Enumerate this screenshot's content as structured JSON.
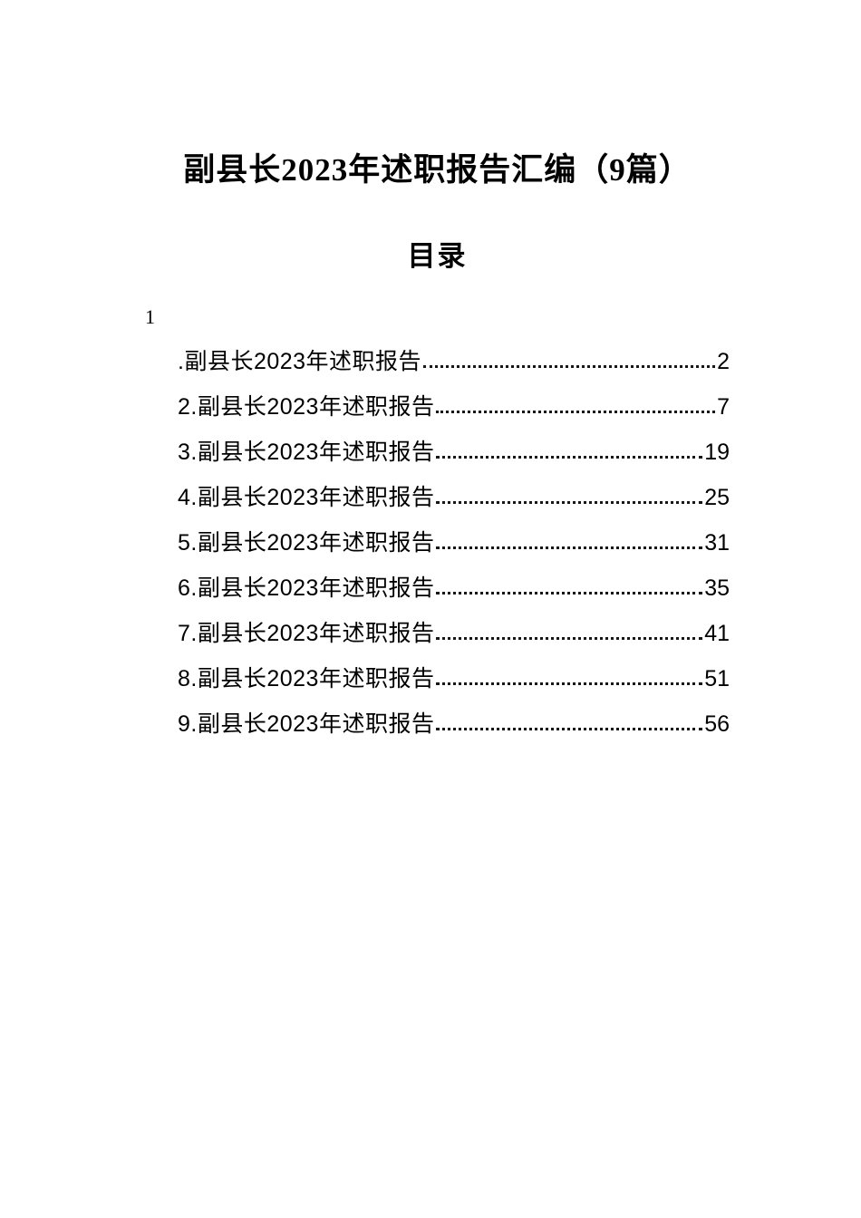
{
  "document": {
    "title": "副县长2023年述职报告汇编（9篇）",
    "toc_heading": "目录",
    "stray_number": "1",
    "toc": [
      {
        "label": ".副县长2023年述职报告",
        "page": "2"
      },
      {
        "label": "2.副县长2023年述职报告",
        "page": "7"
      },
      {
        "label": "3.副县长2023年述职报告",
        "page": "19"
      },
      {
        "label": "4.副县长2023年述职报告",
        "page": "25"
      },
      {
        "label": "5.副县长2023年述职报告",
        "page": "31"
      },
      {
        "label": "6.副县长2023年述职报告",
        "page": "35"
      },
      {
        "label": "7.副县长2023年述职报告",
        "page": "41"
      },
      {
        "label": "8.副县长2023年述职报告",
        "page": "51"
      },
      {
        "label": "9.副县长2023年述职报告",
        "page": "56"
      }
    ]
  }
}
